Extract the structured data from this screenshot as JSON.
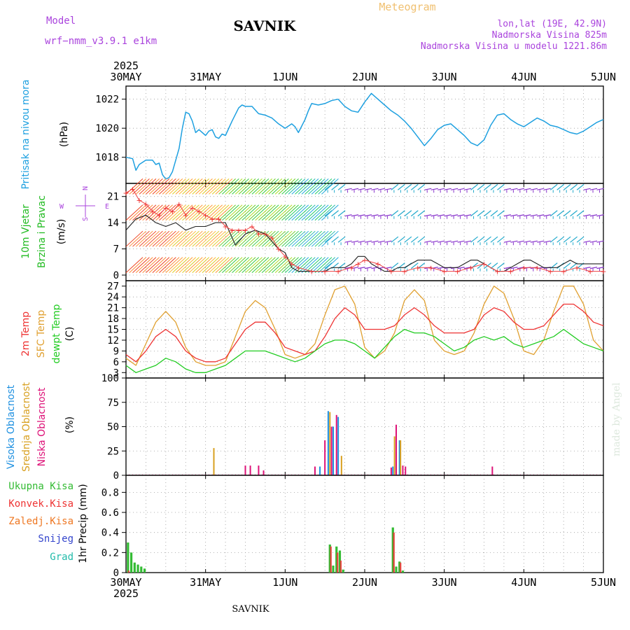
{
  "header": {
    "model_label": "Model",
    "model_name": "wrf−nmm_v3.9.1  e1km",
    "station": "SAVNIK",
    "meteogram": "Meteogram",
    "coords": "lon,lat (19E, 42.9N)",
    "altitude": "Nadmorska Visina 825m",
    "model_altitude": "Nadmorska Visina u modelu 1221.86m",
    "footer_station": "SAVNIK",
    "credit": "made by Angel"
  },
  "colors": {
    "pressure": "#1ea0e0",
    "wind_label": "#22bb22",
    "temp2m": "#ee3333",
    "sfc": "#e0a030",
    "dewpt": "#22cc22",
    "cloud_high": "#1e90e0",
    "cloud_mid": "#d8a020",
    "cloud_low": "#dd1177",
    "rain_total": "#33bb33",
    "rain_conv": "#ee3333",
    "rain_frz": "#ee7722",
    "snow": "#3344cc",
    "hail": "#22bbaa",
    "label_purple": "#aa44dd"
  },
  "chart_data": [
    {
      "type": "line",
      "panel": "pressure",
      "ylabel": [
        "Pritisak na nivou mora",
        "(hPa)"
      ],
      "yticks": [
        1018,
        1020,
        1022
      ],
      "ylim": [
        1016.2,
        1022.9
      ],
      "xlim": [
        0,
        144
      ],
      "series": [
        {
          "x": [
            0,
            2,
            3,
            4,
            6,
            8,
            9,
            10,
            11,
            12,
            13,
            14,
            16,
            17,
            18,
            19,
            20,
            21,
            22,
            24,
            25,
            26,
            27,
            28,
            29,
            30,
            32,
            34,
            35,
            36,
            37,
            38,
            40,
            42,
            44,
            46,
            48,
            50,
            51,
            52,
            54,
            55,
            56,
            58,
            60,
            62,
            64,
            66,
            68,
            70,
            72,
            74,
            76,
            78,
            80,
            82,
            84,
            86,
            88,
            90,
            92,
            94,
            96,
            98,
            100,
            102,
            104,
            106,
            108,
            110,
            112,
            114,
            116,
            118,
            120,
            122,
            124,
            126,
            128,
            130,
            132,
            134,
            136,
            138,
            140,
            142,
            144
          ],
          "values": [
            1018,
            1017.9,
            1017.1,
            1017.5,
            1017.8,
            1017.8,
            1017.5,
            1017.6,
            1016.8,
            1016.5,
            1016.6,
            1017,
            1018.6,
            1020,
            1021.1,
            1021,
            1020.5,
            1019.7,
            1019.9,
            1019.5,
            1019.8,
            1019.9,
            1019.4,
            1019.3,
            1019.6,
            1019.5,
            1020.5,
            1021.4,
            1021.6,
            1021.5,
            1021.5,
            1021.5,
            1021,
            1020.9,
            1020.7,
            1020.3,
            1020,
            1020.3,
            1020.1,
            1019.7,
            1020.6,
            1021.2,
            1021.7,
            1021.6,
            1021.7,
            1021.9,
            1022,
            1021.5,
            1021.2,
            1021.1,
            1021.8,
            1022.4,
            1022,
            1021.6,
            1021.2,
            1020.9,
            1020.5,
            1020,
            1019.4,
            1018.8,
            1019.3,
            1019.9,
            1020.2,
            1020.3,
            1019.9,
            1019.5,
            1019,
            1018.8,
            1019.2,
            1020.2,
            1020.9,
            1021,
            1020.6,
            1020.3,
            1020.1,
            1020.4,
            1020.7,
            1020.5,
            1020.2,
            1020.1,
            1019.9,
            1019.7,
            1019.6,
            1019.8,
            1020.1,
            1020.4,
            1020.6
          ]
        }
      ]
    },
    {
      "type": "line",
      "panel": "wind",
      "ylabel": [
        "10m Vjetar",
        "Brzina i Pravac",
        "(m/s)"
      ],
      "compass": [
        "S",
        "E",
        "W",
        "N"
      ],
      "yticks": [
        0,
        7,
        14,
        21
      ],
      "ylim": [
        -1.5,
        24.5
      ],
      "xlim": [
        0,
        144
      ],
      "series": [
        {
          "name": "speed",
          "x": [
            0,
            3,
            6,
            9,
            12,
            15,
            18,
            21,
            24,
            27,
            30,
            33,
            36,
            39,
            42,
            44,
            46,
            48,
            50,
            52,
            54,
            56,
            58,
            60,
            62,
            64,
            66,
            68,
            70,
            72,
            74,
            76,
            78,
            80,
            82,
            84,
            86,
            88,
            90,
            92,
            94,
            96,
            98,
            100,
            102,
            104,
            106,
            108,
            110,
            112,
            114,
            116,
            118,
            120,
            122,
            124,
            126,
            128,
            130,
            132,
            134,
            136,
            138,
            140,
            142,
            144
          ],
          "values": [
            12,
            15,
            16,
            14,
            13,
            14,
            12,
            13,
            13,
            14,
            14,
            8,
            11,
            12,
            11,
            9,
            7,
            6,
            2,
            1,
            1,
            1,
            1,
            1,
            2,
            2,
            2,
            3,
            5,
            5,
            3,
            2,
            1,
            1,
            2,
            2,
            3,
            4,
            4,
            4,
            3,
            2,
            2,
            2,
            3,
            4,
            4,
            3,
            2,
            1,
            1,
            2,
            3,
            4,
            4,
            3,
            2,
            2,
            2,
            3,
            4,
            3,
            3,
            3,
            3,
            3
          ]
        },
        {
          "name": "gust",
          "x": [
            0,
            2,
            4,
            6,
            8,
            10,
            12,
            14,
            16,
            18,
            20,
            22,
            24,
            26,
            28,
            30,
            32,
            34,
            36,
            38,
            40,
            42,
            44,
            46,
            48,
            50,
            52,
            56,
            60,
            64,
            68,
            70,
            72,
            76,
            80,
            84,
            88,
            92,
            96,
            100,
            104,
            108,
            112,
            116,
            120,
            124,
            128,
            132,
            136,
            140,
            144
          ],
          "values": [
            22,
            23,
            20,
            19,
            17,
            16,
            18,
            17,
            19,
            16,
            18,
            17,
            16,
            15,
            15,
            13,
            12,
            12,
            12,
            13,
            11,
            11,
            10,
            7,
            5,
            3,
            2,
            1,
            1,
            1,
            2,
            3,
            4,
            3,
            1,
            1,
            2,
            2,
            1,
            1,
            2,
            3,
            1,
            1,
            2,
            2,
            1,
            1,
            2,
            1,
            1
          ]
        }
      ]
    },
    {
      "type": "line",
      "panel": "temperature",
      "ylabel": [
        "2m Temp",
        "SFC Temp",
        "dewpt Temp",
        "(C)"
      ],
      "yticks": [
        3,
        6,
        9,
        12,
        15,
        18,
        21,
        24,
        27
      ],
      "ylim": [
        1.5,
        28.5
      ],
      "xlim": [
        0,
        144
      ],
      "series": [
        {
          "name": "2m Temp",
          "x": [
            0,
            3,
            6,
            9,
            12,
            15,
            18,
            21,
            24,
            27,
            30,
            33,
            36,
            39,
            42,
            45,
            48,
            51,
            54,
            57,
            60,
            63,
            66,
            69,
            72,
            75,
            78,
            81,
            84,
            87,
            90,
            93,
            96,
            99,
            102,
            105,
            108,
            111,
            114,
            117,
            120,
            123,
            126,
            129,
            132,
            135,
            138,
            141,
            144
          ],
          "values": [
            8,
            6,
            9,
            13,
            15,
            13,
            9,
            7,
            6,
            6,
            7,
            11,
            15,
            17,
            17,
            14,
            10,
            9,
            8,
            9,
            13,
            18,
            21,
            19,
            15,
            15,
            15,
            16,
            19,
            21,
            19,
            16,
            14,
            14,
            14,
            15,
            19,
            21,
            20,
            17,
            15,
            15,
            16,
            19,
            22,
            22,
            20,
            17,
            16
          ]
        },
        {
          "name": "SFC Temp",
          "x": [
            0,
            3,
            6,
            9,
            12,
            15,
            18,
            21,
            24,
            27,
            30,
            33,
            36,
            39,
            42,
            45,
            48,
            51,
            54,
            57,
            60,
            63,
            66,
            69,
            72,
            75,
            78,
            81,
            84,
            87,
            90,
            93,
            96,
            99,
            102,
            105,
            108,
            111,
            114,
            117,
            120,
            123,
            126,
            129,
            132,
            135,
            138,
            141,
            144
          ],
          "values": [
            7,
            5,
            11,
            17,
            20,
            17,
            10,
            6,
            5,
            5,
            6,
            13,
            20,
            23,
            21,
            15,
            8,
            7,
            8,
            11,
            19,
            26,
            27,
            22,
            10,
            7,
            9,
            14,
            23,
            26,
            23,
            12,
            9,
            8,
            9,
            14,
            22,
            27,
            25,
            18,
            9,
            8,
            12,
            20,
            27,
            27,
            22,
            12,
            9
          ]
        },
        {
          "name": "dewpt Temp",
          "x": [
            0,
            3,
            6,
            9,
            12,
            15,
            18,
            21,
            24,
            27,
            30,
            33,
            36,
            39,
            42,
            45,
            48,
            51,
            54,
            57,
            60,
            63,
            66,
            69,
            72,
            75,
            78,
            81,
            84,
            87,
            90,
            93,
            96,
            99,
            102,
            105,
            108,
            111,
            114,
            117,
            120,
            123,
            126,
            129,
            132,
            135,
            138,
            141,
            144
          ],
          "values": [
            5,
            3,
            4,
            5,
            7,
            6,
            4,
            3,
            3,
            4,
            5,
            7,
            9,
            9,
            9,
            8,
            7,
            6,
            7,
            9,
            11,
            12,
            12,
            11,
            9,
            7,
            10,
            13,
            15,
            14,
            14,
            13,
            11,
            9,
            10,
            12,
            13,
            12,
            13,
            11,
            10,
            11,
            12,
            13,
            15,
            13,
            11,
            10,
            9
          ]
        }
      ]
    },
    {
      "type": "bar",
      "panel": "clouds",
      "ylabel": [
        "Visoka Oblacnost",
        "Srednja Oblacnost",
        "Niska Oblacnost",
        "(%)"
      ],
      "yticks": [
        0,
        25,
        50,
        75,
        100
      ],
      "ylim": [
        0,
        100
      ],
      "xlim": [
        0,
        144
      ],
      "series": [
        {
          "name": "Visoka Oblacnost",
          "x": [
            58.5,
            61,
            62.5,
            64,
            80.5,
            82.5
          ],
          "values": [
            9,
            66,
            50,
            60,
            9,
            36
          ]
        },
        {
          "name": "Srednja Oblacnost",
          "x": [
            26.5,
            61.5,
            65,
            81,
            82.8
          ],
          "values": [
            28,
            65,
            20,
            40,
            36
          ]
        },
        {
          "name": "Niska Oblacnost",
          "x": [
            36,
            37.5,
            40,
            41.5,
            57,
            60,
            62,
            63.5,
            80,
            81.5,
            83.5,
            84.3,
            110.5
          ],
          "values": [
            10,
            10,
            10,
            5,
            9,
            36,
            50,
            62,
            8,
            52,
            10,
            9,
            9
          ]
        }
      ]
    },
    {
      "type": "bar",
      "panel": "precip",
      "ylabel": [
        "1hr Precip (mm)"
      ],
      "legend": [
        "Ukupna Kisa",
        "Konvek.Kisa",
        "Zaledj.Kisa",
        "Snijeg",
        "Grad"
      ],
      "yticks": [
        0,
        0.2,
        0.4,
        0.6,
        0.8
      ],
      "ylim": [
        0,
        0.97
      ],
      "xlim": [
        0,
        144
      ],
      "series": [
        {
          "name": "Ukupna Kisa",
          "x": [
            0.6,
            1.6,
            2.6,
            3.6,
            4.6,
            5.6,
            61.5,
            62.5,
            63.5,
            64.5,
            65.5,
            80.5,
            81.5,
            82.5,
            83.5
          ],
          "values": [
            0.3,
            0.2,
            0.1,
            0.08,
            0.06,
            0.04,
            0.28,
            0.07,
            0.26,
            0.22,
            0.03,
            0.45,
            0.06,
            0.11,
            0.02
          ]
        },
        {
          "name": "Konvek.Kisa",
          "x": [
            0.8,
            61.8,
            63.8,
            64.8,
            80.8,
            82.8
          ],
          "values": [
            0.02,
            0.26,
            0.2,
            0.12,
            0.4,
            0.1
          ]
        }
      ]
    }
  ],
  "time_axis": {
    "labels": [
      "30MAY",
      "31MAY",
      "1JUN",
      "2JUN",
      "3JUN",
      "4JUN",
      "5JUN"
    ],
    "hours": [
      0,
      24,
      48,
      72,
      96,
      120,
      144
    ],
    "year": "2025"
  }
}
